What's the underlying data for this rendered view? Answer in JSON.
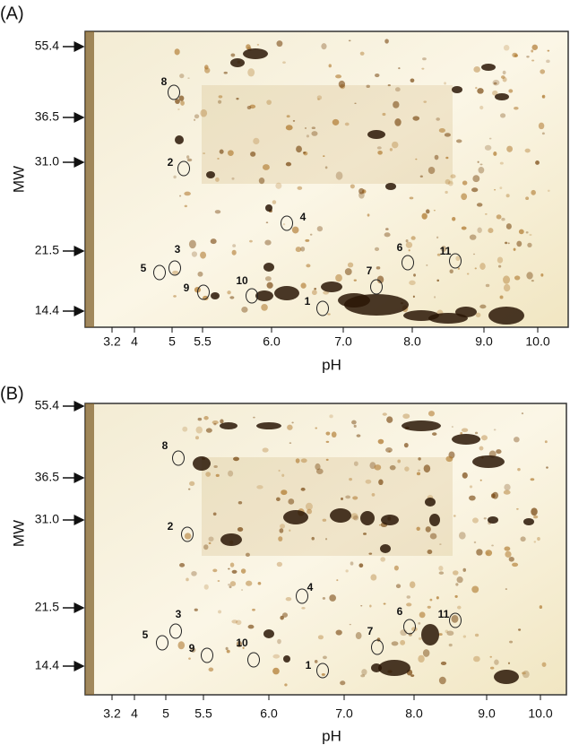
{
  "panels": [
    {
      "label": "(A)",
      "y_label": "MW",
      "x_label": "pH",
      "y_ticks": [
        "55.4",
        "36.5",
        "31.0",
        "21.5",
        "14.4"
      ],
      "x_ticks": [
        "3.2",
        "4",
        "5",
        "5.5",
        "6.0",
        "7.0",
        "8.0",
        "9.0",
        "10.0"
      ],
      "spots": [
        "8",
        "2",
        "4",
        "3",
        "5",
        "9",
        "10",
        "1",
        "7",
        "6",
        "11"
      ]
    },
    {
      "label": "(B)",
      "y_label": "MW",
      "x_label": "pH",
      "y_ticks": [
        "55.4",
        "36.5",
        "31.0",
        "21.5",
        "14.4"
      ],
      "x_ticks": [
        "3.2",
        "4",
        "5",
        "5.5",
        "6.0",
        "7.0",
        "8.0",
        "9.0",
        "10.0"
      ],
      "spots": [
        "8",
        "2",
        "4",
        "3",
        "5",
        "9",
        "10",
        "1",
        "7",
        "6",
        "11"
      ]
    }
  ]
}
